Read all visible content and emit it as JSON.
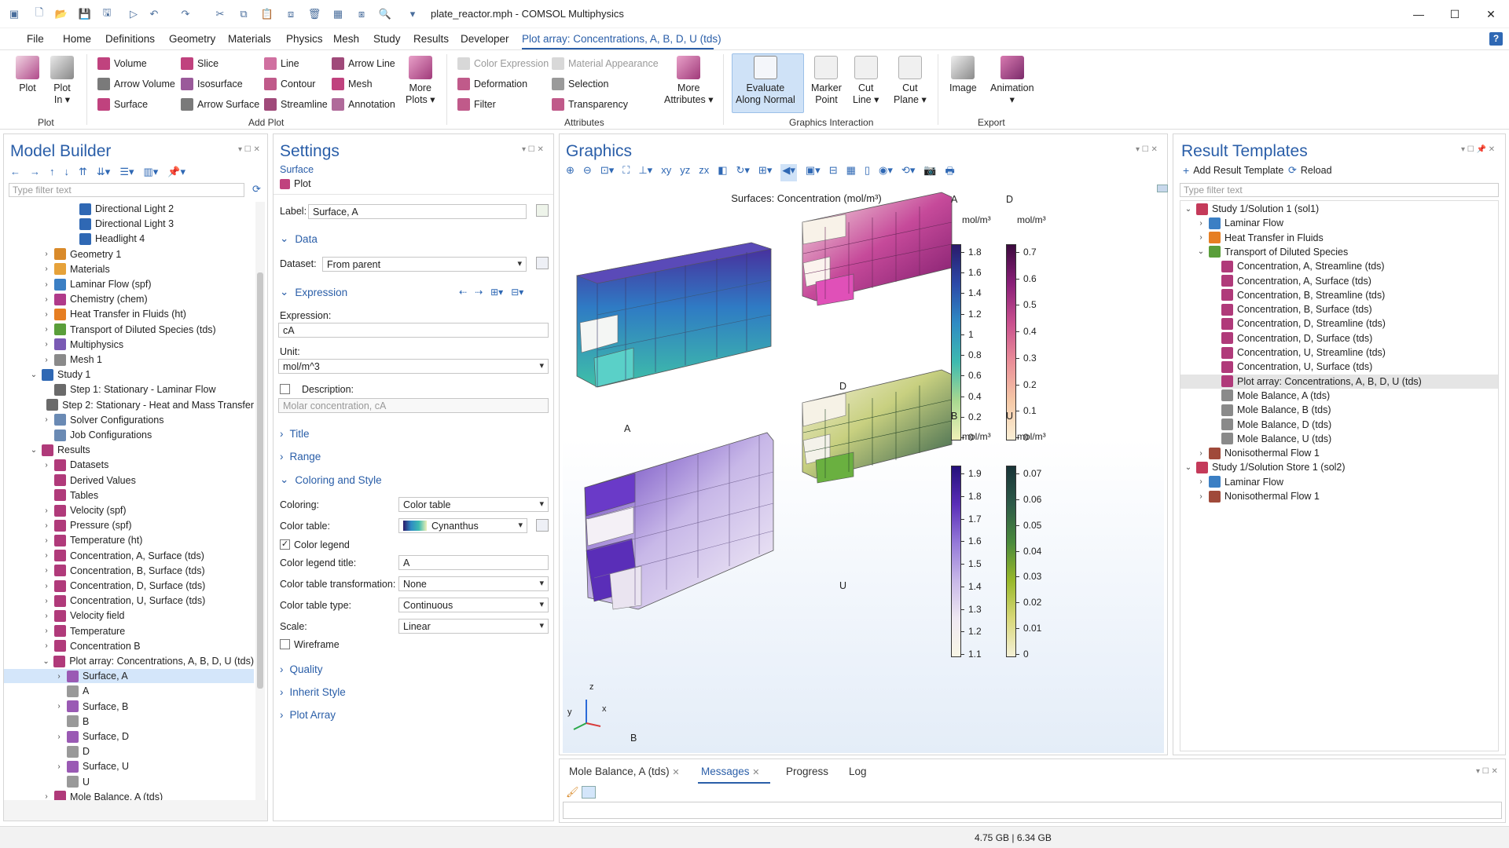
{
  "window": {
    "title": "plate_reactor.mph - COMSOL Multiphysics"
  },
  "menu": [
    "File",
    "Home",
    "Definitions",
    "Geometry",
    "Materials",
    "Physics",
    "Mesh",
    "Study",
    "Results",
    "Developer",
    "Plot array: Concentrations, A, B, D, U (tds)"
  ],
  "ribbon": {
    "plot": "Plot",
    "plot_in": "Plot\nIn ▾",
    "volume": "Volume",
    "arrow_volume": "Arrow Volume",
    "surface": "Surface",
    "slice": "Slice",
    "isosurface": "Isosurface",
    "arrow_surface": "Arrow Surface",
    "line": "Line",
    "contour": "Contour",
    "streamline": "Streamline",
    "arrow_line": "Arrow Line",
    "mesh": "Mesh",
    "annotation": "Annotation",
    "more_plots": "More\nPlots ▾",
    "color_expression": "Color Expression",
    "deformation": "Deformation",
    "filter": "Filter",
    "material_appearance": "Material Appearance",
    "selection": "Selection",
    "transparency": "Transparency",
    "more_attributes": "More\nAttributes ▾",
    "evaluate_along_normal": "Evaluate\nAlong Normal",
    "marker_point": "Marker\nPoint",
    "cut_line": "Cut\nLine ▾",
    "cut_plane": "Cut\nPlane ▾",
    "image": "Image",
    "animation": "Animation\n▾",
    "groups": {
      "plot": "Plot",
      "add_plot": "Add Plot",
      "attributes": "Attributes",
      "graphics_interaction": "Graphics Interaction",
      "export": "Export"
    }
  },
  "model_builder": {
    "title": "Model Builder",
    "filter_placeholder": "Type filter text",
    "rows": [
      {
        "label": "Directional Light 2",
        "indent": 5,
        "tw": "",
        "c": "#2f68b4"
      },
      {
        "label": "Directional Light 3",
        "indent": 5,
        "tw": "",
        "c": "#2f68b4"
      },
      {
        "label": "Headlight 4",
        "indent": 5,
        "tw": "",
        "c": "#2f68b4"
      },
      {
        "label": "Geometry 1",
        "indent": 3,
        "tw": "›",
        "c": "#d98a2a"
      },
      {
        "label": "Materials",
        "indent": 3,
        "tw": "›",
        "c": "#e6a23a"
      },
      {
        "label": "Laminar Flow (spf)",
        "indent": 3,
        "tw": "›",
        "c": "#3b7fc4"
      },
      {
        "label": "Chemistry (chem)",
        "indent": 3,
        "tw": "›",
        "c": "#b03a8a"
      },
      {
        "label": "Heat Transfer in Fluids (ht)",
        "indent": 3,
        "tw": "›",
        "c": "#e67e22"
      },
      {
        "label": "Transport of Diluted Species (tds)",
        "indent": 3,
        "tw": "›",
        "c": "#5a9e3a"
      },
      {
        "label": "Multiphysics",
        "indent": 3,
        "tw": "›",
        "c": "#7a5ab4"
      },
      {
        "label": "Mesh 1",
        "indent": 3,
        "tw": "›",
        "c": "#8a8a8a"
      },
      {
        "label": "Study 1",
        "indent": 2,
        "tw": "⌄",
        "c": "#2f68b4"
      },
      {
        "label": "Step 1: Stationary - Laminar Flow",
        "indent": 3,
        "tw": "",
        "c": "#6a6a6a"
      },
      {
        "label": "Step 2: Stationary - Heat and Mass Transfer",
        "indent": 3,
        "tw": "",
        "c": "#6a6a6a"
      },
      {
        "label": "Solver Configurations",
        "indent": 3,
        "tw": "›",
        "c": "#6a8ab4"
      },
      {
        "label": "Job Configurations",
        "indent": 3,
        "tw": "",
        "c": "#6a8ab4"
      },
      {
        "label": "Results",
        "indent": 2,
        "tw": "⌄",
        "c": "#b03a7a"
      },
      {
        "label": "Datasets",
        "indent": 3,
        "tw": "›",
        "c": "#b03a7a"
      },
      {
        "label": "Derived Values",
        "indent": 3,
        "tw": "",
        "c": "#b03a7a"
      },
      {
        "label": "Tables",
        "indent": 3,
        "tw": "",
        "c": "#b03a7a"
      },
      {
        "label": "Velocity (spf)",
        "indent": 3,
        "tw": "›",
        "c": "#b03a7a"
      },
      {
        "label": "Pressure (spf)",
        "indent": 3,
        "tw": "›",
        "c": "#b03a7a"
      },
      {
        "label": "Temperature (ht)",
        "indent": 3,
        "tw": "›",
        "c": "#b03a7a"
      },
      {
        "label": "Concentration, A, Surface (tds)",
        "indent": 3,
        "tw": "›",
        "c": "#b03a7a"
      },
      {
        "label": "Concentration, B, Surface (tds)",
        "indent": 3,
        "tw": "›",
        "c": "#b03a7a"
      },
      {
        "label": "Concentration, D, Surface (tds)",
        "indent": 3,
        "tw": "›",
        "c": "#b03a7a"
      },
      {
        "label": "Concentration, U, Surface (tds)",
        "indent": 3,
        "tw": "›",
        "c": "#b03a7a"
      },
      {
        "label": "Velocity field",
        "indent": 3,
        "tw": "›",
        "c": "#b03a7a"
      },
      {
        "label": "Temperature",
        "indent": 3,
        "tw": "›",
        "c": "#b03a7a"
      },
      {
        "label": "Concentration B",
        "indent": 3,
        "tw": "›",
        "c": "#b03a7a"
      },
      {
        "label": "Plot array: Concentrations, A, B, D, U (tds)",
        "indent": 3,
        "tw": "⌄",
        "c": "#b03a7a"
      },
      {
        "label": "Surface, A",
        "indent": 4,
        "tw": "›",
        "c": "#9a5ab4",
        "sel": true
      },
      {
        "label": "A",
        "indent": 4,
        "tw": "",
        "c": "#999"
      },
      {
        "label": "Surface, B",
        "indent": 4,
        "tw": "›",
        "c": "#9a5ab4"
      },
      {
        "label": "B",
        "indent": 4,
        "tw": "",
        "c": "#999"
      },
      {
        "label": "Surface, D",
        "indent": 4,
        "tw": "›",
        "c": "#9a5ab4"
      },
      {
        "label": "D",
        "indent": 4,
        "tw": "",
        "c": "#999"
      },
      {
        "label": "Surface, U",
        "indent": 4,
        "tw": "›",
        "c": "#9a5ab4"
      },
      {
        "label": "U",
        "indent": 4,
        "tw": "",
        "c": "#999"
      },
      {
        "label": "Mole Balance, A (tds)",
        "indent": 3,
        "tw": "›",
        "c": "#b03a7a"
      },
      {
        "label": "Mole Balance, B (tds)",
        "indent": 3,
        "tw": "›",
        "c": "#b03a7a"
      },
      {
        "label": "Mole Balance, D (tds)",
        "indent": 3,
        "tw": "›",
        "c": "#b03a7a"
      },
      {
        "label": "Mole Balance, U (tds)",
        "indent": 3,
        "tw": "›",
        "c": "#b03a7a"
      }
    ]
  },
  "settings": {
    "title": "Settings",
    "subtitle": "Surface",
    "plot": "Plot",
    "label_label": "Label:",
    "label_value": "Surface, A",
    "data_section": "Data",
    "dataset_label": "Dataset:",
    "dataset_value": "From parent",
    "expression_section": "Expression",
    "expression_label": "Expression:",
    "expression_value": "cA",
    "unit_label": "Unit:",
    "unit_value": "mol/m^3",
    "description_label": "Description:",
    "description_value": "Molar concentration, cA",
    "title_section": "Title",
    "range_section": "Range",
    "coloring_section": "Coloring and Style",
    "coloring_label": "Coloring:",
    "coloring_value": "Color table",
    "color_table_label": "Color table:",
    "color_table_value": "Cynanthus",
    "color_legend_label": "Color legend",
    "legend_title_label": "Color legend title:",
    "legend_title_value": "A",
    "transformation_label": "Color table transformation:",
    "transformation_value": "None",
    "type_label": "Color table type:",
    "type_value": "Continuous",
    "scale_label": "Scale:",
    "scale_value": "Linear",
    "wireframe_label": "Wireframe",
    "quality_section": "Quality",
    "inherit_section": "Inherit Style",
    "plot_array_section": "Plot Array"
  },
  "graphics": {
    "title": "Graphics",
    "plot_title": "Surfaces: Concentration (mol/m³)",
    "labels": {
      "A": "A",
      "B": "B",
      "D": "D",
      "U": "U"
    },
    "axes": {
      "x": "x",
      "y": "y",
      "z": "z"
    },
    "legends": [
      {
        "name": "A",
        "unit": "mol/m³",
        "ticks": [
          "1.8",
          "1.6",
          "1.4",
          "1.2",
          "1",
          "0.8",
          "0.6",
          "0.4",
          "0.2",
          "0"
        ],
        "colors": [
          "#2a1a6a",
          "#2b4aa8",
          "#2f8bc4",
          "#3dbab0",
          "#a8d890",
          "#eff0b8"
        ]
      },
      {
        "name": "D",
        "unit": "mol/m³",
        "ticks": [
          "0.7",
          "0.6",
          "0.5",
          "0.4",
          "0.3",
          "0.2",
          "0.1",
          "0"
        ],
        "colors": [
          "#3c0a3e",
          "#8a1f78",
          "#c9508e",
          "#ea8e98",
          "#f5c8a6",
          "#fbf0d6"
        ]
      },
      {
        "name": "B",
        "unit": "mol/m³",
        "ticks": [
          "1.9",
          "1.8",
          "1.7",
          "1.6",
          "1.5",
          "1.4",
          "1.3",
          "1.2",
          "1.1"
        ],
        "colors": [
          "#24107a",
          "#5a2eb8",
          "#9478d8",
          "#c8b8e8",
          "#eee8f2",
          "#f8f6e6"
        ]
      },
      {
        "name": "U",
        "unit": "mol/m³",
        "ticks": [
          "0.07",
          "0.06",
          "0.05",
          "0.04",
          "0.03",
          "0.02",
          "0.01",
          "0"
        ],
        "colors": [
          "#183438",
          "#2d5a48",
          "#4a8a3c",
          "#98b82a",
          "#d8d878",
          "#f4f0d6"
        ]
      }
    ]
  },
  "result_templates": {
    "title": "Result Templates",
    "add": "Add Result Template",
    "reload": "Reload",
    "filter_placeholder": "Type filter text",
    "rows": [
      {
        "label": "Study 1/Solution 1 (sol1)",
        "indent": 0,
        "tw": "⌄",
        "c": "#c43a5a"
      },
      {
        "label": "Laminar Flow",
        "indent": 1,
        "tw": "›",
        "c": "#3b7fc4"
      },
      {
        "label": "Heat Transfer in Fluids",
        "indent": 1,
        "tw": "›",
        "c": "#e67e22"
      },
      {
        "label": "Transport of Diluted Species",
        "indent": 1,
        "tw": "⌄",
        "c": "#5a9e3a"
      },
      {
        "label": "Concentration, A, Streamline (tds)",
        "indent": 2,
        "tw": "",
        "c": "#b03a7a"
      },
      {
        "label": "Concentration, A, Surface (tds)",
        "indent": 2,
        "tw": "",
        "c": "#b03a7a"
      },
      {
        "label": "Concentration, B, Streamline (tds)",
        "indent": 2,
        "tw": "",
        "c": "#b03a7a"
      },
      {
        "label": "Concentration, B, Surface (tds)",
        "indent": 2,
        "tw": "",
        "c": "#b03a7a"
      },
      {
        "label": "Concentration, D, Streamline (tds)",
        "indent": 2,
        "tw": "",
        "c": "#b03a7a"
      },
      {
        "label": "Concentration, D, Surface (tds)",
        "indent": 2,
        "tw": "",
        "c": "#b03a7a"
      },
      {
        "label": "Concentration, U, Streamline (tds)",
        "indent": 2,
        "tw": "",
        "c": "#b03a7a"
      },
      {
        "label": "Concentration, U, Surface (tds)",
        "indent": 2,
        "tw": "",
        "c": "#b03a7a"
      },
      {
        "label": "Plot array: Concentrations, A, B, D, U (tds)",
        "indent": 2,
        "tw": "",
        "c": "#b03a7a",
        "hl": true
      },
      {
        "label": "Mole Balance, A (tds)",
        "indent": 2,
        "tw": "",
        "c": "#8a8a8a"
      },
      {
        "label": "Mole Balance, B (tds)",
        "indent": 2,
        "tw": "",
        "c": "#8a8a8a"
      },
      {
        "label": "Mole Balance, D (tds)",
        "indent": 2,
        "tw": "",
        "c": "#8a8a8a"
      },
      {
        "label": "Mole Balance, U (tds)",
        "indent": 2,
        "tw": "",
        "c": "#8a8a8a"
      },
      {
        "label": "Nonisothermal Flow 1",
        "indent": 1,
        "tw": "›",
        "c": "#a04a3a"
      },
      {
        "label": "Study 1/Solution Store 1 (sol2)",
        "indent": 0,
        "tw": "⌄",
        "c": "#c43a5a"
      },
      {
        "label": "Laminar Flow",
        "indent": 1,
        "tw": "›",
        "c": "#3b7fc4"
      },
      {
        "label": "Nonisothermal Flow 1",
        "indent": 1,
        "tw": "›",
        "c": "#a04a3a"
      }
    ]
  },
  "bottom": {
    "tabs": [
      "Mole Balance, A (tds)",
      "Messages",
      "Progress",
      "Log"
    ],
    "active_tab": "Messages"
  },
  "status": {
    "memory": "4.75 GB | 6.34 GB"
  }
}
